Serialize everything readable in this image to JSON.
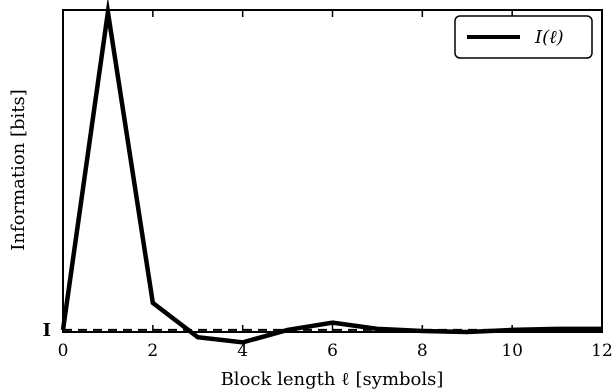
{
  "chart_data": {
    "type": "line",
    "xlabel": "Block length ℓ [symbols]",
    "ylabel": "Information [bits]",
    "xlim": [
      0,
      12
    ],
    "ylim": [
      -0.55,
      1.0
    ],
    "xticks": [
      0,
      2,
      4,
      6,
      8,
      10,
      12
    ],
    "grid": false,
    "legend": {
      "placement": "top-right",
      "entries": [
        "I(ℓ)"
      ]
    },
    "series": [
      {
        "name": "I(ℓ)",
        "style": "solid",
        "color": "#000000",
        "x": [
          0,
          1,
          2,
          3,
          4,
          5,
          6,
          7,
          8,
          9,
          10,
          11,
          12
        ],
        "y": [
          -0.54,
          0.99,
          -0.41,
          -0.575,
          -0.6,
          -0.54,
          -0.505,
          -0.535,
          -0.545,
          -0.55,
          -0.54,
          -0.535,
          -0.535
        ]
      }
    ],
    "reference_line": {
      "style": "dashed",
      "color": "#000000",
      "y": -0.54,
      "label": "I"
    }
  }
}
